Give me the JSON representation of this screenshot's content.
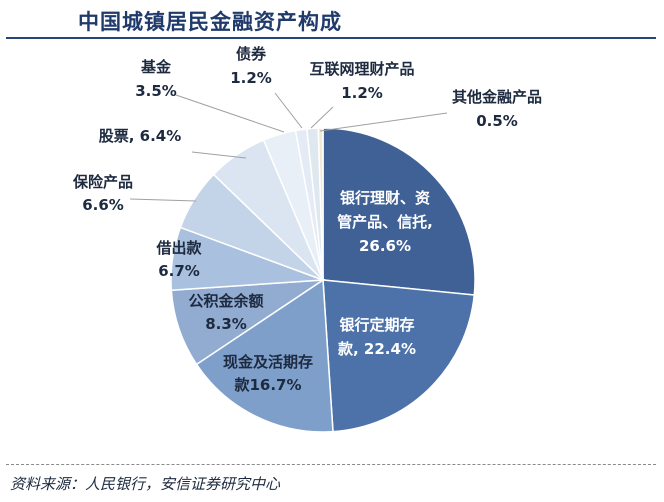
{
  "chart_data": {
    "type": "pie",
    "title": "中国城镇居民金融资产构成",
    "slices": [
      {
        "name": "银行理财、资管产品、信托",
        "value": 26.6,
        "label_lines": [
          "银行理财、资",
          "管产品、信托,",
          "26.6%"
        ]
      },
      {
        "name": "银行定期存款",
        "value": 22.4,
        "label_lines": [
          "银行定期存",
          "款, 22.4%"
        ]
      },
      {
        "name": "现金及活期存款",
        "value": 16.7,
        "label_lines": [
          "现金及活期存",
          "款16.7%"
        ]
      },
      {
        "name": "公积金余额",
        "value": 8.3,
        "label_lines": [
          "公积金余额",
          "8.3%"
        ]
      },
      {
        "name": "借出款",
        "value": 6.7,
        "label_lines": [
          "借出款",
          "6.7%"
        ]
      },
      {
        "name": "保险产品",
        "value": 6.6,
        "label_lines": [
          "保险产品",
          "6.6%"
        ]
      },
      {
        "name": "股票",
        "value": 6.4,
        "label_lines": [
          "股票, 6.4%"
        ]
      },
      {
        "name": "基金",
        "value": 3.5,
        "label_lines": [
          "基金",
          "3.5%"
        ]
      },
      {
        "name": "债券",
        "value": 1.2,
        "label_lines": [
          "债券",
          "1.2%"
        ]
      },
      {
        "name": "互联网理财产品",
        "value": 1.2,
        "label_lines": [
          "互联网理财产品",
          "1.2%"
        ]
      },
      {
        "name": "其他金融产品",
        "value": 0.5,
        "label_lines": [
          "其他金融产品",
          "0.5%"
        ]
      }
    ],
    "colors": [
      "#3f6195",
      "#4c72a9",
      "#7f9fcb",
      "#92acd1",
      "#a9c0de",
      "#c3d3e8",
      "#dbe5f1",
      "#e9eff7",
      "#e5ebf4",
      "#dfe7ef",
      "#f1ead3"
    ],
    "legend": "none",
    "start": "top, clockwise"
  },
  "source": "资料来源：人民银行，安信证券研究中心"
}
